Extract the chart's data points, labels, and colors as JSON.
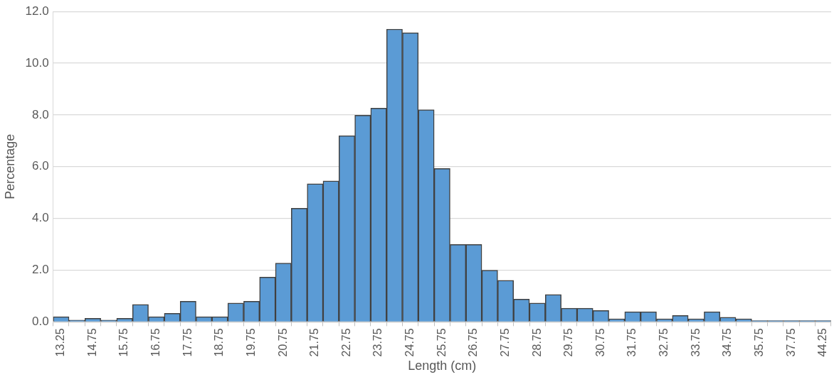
{
  "chart_data": {
    "type": "bar",
    "xlabel": "Length (cm)",
    "ylabel": "Percentage",
    "categories": [
      "13.25",
      null,
      "14.75",
      null,
      "15.75",
      null,
      "16.75",
      null,
      "17.75",
      null,
      "18.75",
      null,
      "19.75",
      null,
      "20.75",
      null,
      "21.75",
      null,
      "22.75",
      null,
      "23.75",
      null,
      "24.75",
      null,
      "25.75",
      null,
      "26.75",
      null,
      "27.75",
      null,
      "28.75",
      null,
      "29.75",
      null,
      "30.75",
      null,
      "31.75",
      null,
      "32.75",
      null,
      "33.75",
      null,
      "34.75",
      null,
      "35.75",
      null,
      "37.75",
      null,
      "44.25"
    ],
    "values": [
      0.2,
      0.07,
      0.14,
      0.07,
      0.14,
      0.67,
      0.2,
      0.33,
      0.8,
      0.2,
      0.2,
      0.73,
      0.8,
      1.73,
      2.27,
      4.39,
      5.34,
      5.45,
      7.2,
      7.99,
      8.26,
      11.32,
      11.18,
      8.2,
      5.93,
      2.99,
      2.99,
      2.0,
      1.61,
      0.88,
      0.73,
      1.06,
      0.53,
      0.53,
      0.44,
      0.12,
      0.39,
      0.39,
      0.12,
      0.25,
      0.12,
      0.39,
      0.18,
      0.12,
      0.05,
      0.05,
      0.05,
      0.05,
      0.05
    ],
    "color": "#5b9bd5",
    "ylim": [
      0,
      12
    ],
    "yticks": [
      {
        "value": 0,
        "label": "0.0"
      },
      {
        "value": 2,
        "label": "2.0"
      },
      {
        "value": 4,
        "label": "4.0"
      },
      {
        "value": 6,
        "label": "6.0"
      },
      {
        "value": 8,
        "label": "8.0"
      },
      {
        "value": 10,
        "label": "10.0"
      },
      {
        "value": 12,
        "label": "12.0"
      }
    ],
    "grid": "y",
    "legend": false
  }
}
